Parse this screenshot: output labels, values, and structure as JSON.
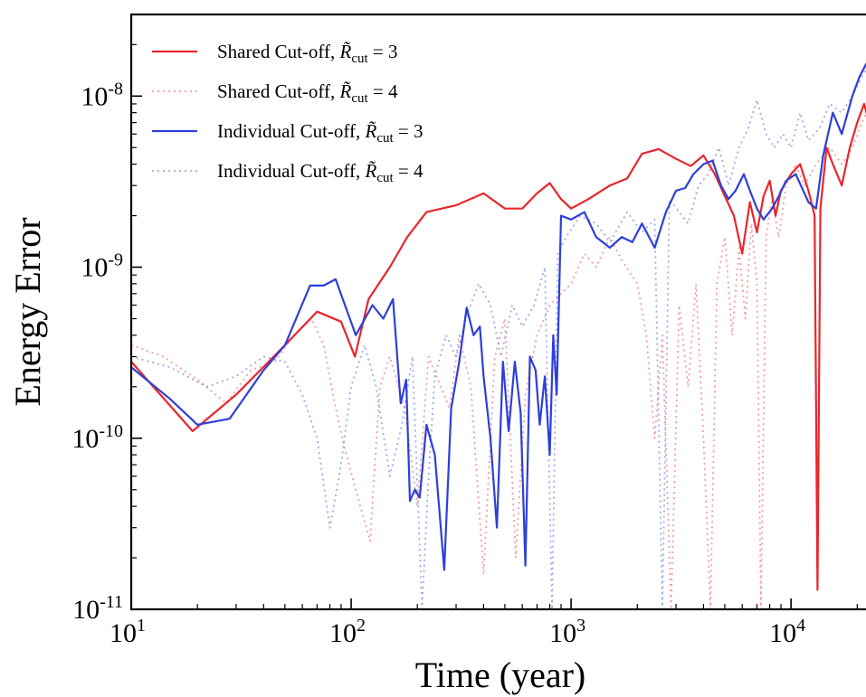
{
  "chart_data": {
    "type": "line",
    "title": "",
    "xlabel": "Time (year)",
    "ylabel": "Energy Error",
    "xscale": "log",
    "yscale": "log",
    "xlim": [
      10,
      25000
    ],
    "ylim": [
      1e-11,
      3e-08
    ],
    "grid": false,
    "legend_position": "top-left",
    "x_ticks": [
      {
        "value": 10,
        "base": "10",
        "exp": "1"
      },
      {
        "value": 100,
        "base": "10",
        "exp": "2"
      },
      {
        "value": 1000,
        "base": "10",
        "exp": "3"
      },
      {
        "value": 10000,
        "base": "10",
        "exp": "4"
      }
    ],
    "y_ticks": [
      {
        "value": 1e-08,
        "base": "10",
        "exp": "-8"
      },
      {
        "value": 1e-09,
        "base": "10",
        "exp": "-9"
      },
      {
        "value": 1e-10,
        "base": "10",
        "exp": "-10"
      },
      {
        "value": 1e-11,
        "base": "10",
        "exp": "-11"
      }
    ],
    "series": [
      {
        "name": "Shared Cut-off, R̃cut = 3",
        "legend_prefix": "Shared Cut-off, ",
        "legend_sym": "R̃",
        "legend_sub": "cut",
        "legend_eq": " = 3",
        "color": "#e8262c",
        "dashed": false,
        "opacity": 1.0,
        "points": [
          [
            10,
            2.8e-10
          ],
          [
            19,
            1.1e-10
          ],
          [
            30,
            1.8e-10
          ],
          [
            50,
            3.5e-10
          ],
          [
            70,
            5.5e-10
          ],
          [
            90,
            4.8e-10
          ],
          [
            104,
            3e-10
          ],
          [
            120,
            6.5e-10
          ],
          [
            150,
            1e-09
          ],
          [
            180,
            1.5e-09
          ],
          [
            220,
            2.1e-09
          ],
          [
            300,
            2.3e-09
          ],
          [
            400,
            2.7e-09
          ],
          [
            500,
            2.2e-09
          ],
          [
            600,
            2.2e-09
          ],
          [
            700,
            2.7e-09
          ],
          [
            800,
            3.1e-09
          ],
          [
            900,
            2.5e-09
          ],
          [
            1000,
            2.2e-09
          ],
          [
            1200,
            2.5e-09
          ],
          [
            1500,
            3e-09
          ],
          [
            1800,
            3.3e-09
          ],
          [
            2100,
            4.6e-09
          ],
          [
            2500,
            4.9e-09
          ],
          [
            3000,
            4.3e-09
          ],
          [
            3500,
            3.9e-09
          ],
          [
            4000,
            4.5e-09
          ],
          [
            4500,
            3.5e-09
          ],
          [
            5000,
            2.6e-09
          ],
          [
            5500,
            2e-09
          ],
          [
            6000,
            1.2e-09
          ],
          [
            6500,
            2.4e-09
          ],
          [
            7000,
            1.6e-09
          ],
          [
            7500,
            2.6e-09
          ],
          [
            8000,
            3.2e-09
          ],
          [
            8500,
            2e-09
          ],
          [
            9000,
            2.8e-09
          ],
          [
            10000,
            3.5e-09
          ],
          [
            11000,
            4e-09
          ],
          [
            12000,
            2.8e-09
          ],
          [
            12800,
            2e-09
          ],
          [
            13200,
            1.3e-11
          ],
          [
            13600,
            2.2e-09
          ],
          [
            14500,
            5e-09
          ],
          [
            15500,
            4e-09
          ],
          [
            17000,
            3e-09
          ],
          [
            18500,
            5e-09
          ],
          [
            20000,
            7e-09
          ],
          [
            21500,
            9e-09
          ],
          [
            23000,
            6.5e-09
          ],
          [
            25000,
            1.05e-08
          ]
        ]
      },
      {
        "name": "Shared Cut-off, R̃cut = 4",
        "legend_prefix": "Shared Cut-off, ",
        "legend_sym": "R̃",
        "legend_sub": "cut",
        "legend_eq": " = 4",
        "color": "#e8262c",
        "dashed": true,
        "opacity": 0.45,
        "points": [
          [
            10,
            3.5e-10
          ],
          [
            14,
            3e-10
          ],
          [
            20,
            2.2e-10
          ],
          [
            27,
            1.6e-10
          ],
          [
            35,
            2.5e-10
          ],
          [
            45,
            2.8e-10
          ],
          [
            55,
            4e-10
          ],
          [
            66,
            5e-10
          ],
          [
            75,
            3.5e-10
          ],
          [
            85,
            1.5e-10
          ],
          [
            95,
            8e-11
          ],
          [
            110,
            4e-11
          ],
          [
            122,
            2.5e-11
          ],
          [
            135,
            2e-10
          ],
          [
            150,
            3e-10
          ],
          [
            175,
            1.5e-10
          ],
          [
            200,
            4e-11
          ],
          [
            225,
            3e-10
          ],
          [
            255,
            2e-10
          ],
          [
            280,
            1.5e-10
          ],
          [
            310,
            4e-10
          ],
          [
            350,
            2e-10
          ],
          [
            400,
            1.6e-11
          ],
          [
            450,
            3e-10
          ],
          [
            500,
            5e-10
          ],
          [
            560,
            2e-11
          ],
          [
            620,
            1.8e-10
          ],
          [
            700,
            4e-10
          ],
          [
            800,
            6e-10
          ],
          [
            900,
            7e-10
          ],
          [
            1000,
            8e-10
          ],
          [
            1150,
            1.2e-09
          ],
          [
            1300,
            1e-09
          ],
          [
            1500,
            1.5e-09
          ],
          [
            1700,
            1.1e-09
          ],
          [
            2000,
            8e-10
          ],
          [
            2200,
            4e-10
          ],
          [
            2400,
            1e-10
          ],
          [
            2600,
            4e-10
          ],
          [
            2850,
            1e-11
          ],
          [
            3100,
            6e-10
          ],
          [
            3400,
            2e-10
          ],
          [
            3700,
            8e-10
          ],
          [
            4000,
            1e-10
          ],
          [
            4300,
            1e-11
          ],
          [
            4600,
            8e-10
          ],
          [
            5000,
            1.5e-09
          ],
          [
            5400,
            4e-10
          ],
          [
            5800,
            1.3e-09
          ],
          [
            6200,
            5e-10
          ],
          [
            6600,
            1.8e-09
          ],
          [
            7000,
            8e-10
          ],
          [
            7300,
            1e-11
          ],
          [
            7700,
            1.5e-09
          ],
          [
            8200,
            2.5e-09
          ],
          [
            8800,
            1.5e-09
          ],
          [
            9500,
            3e-09
          ],
          [
            10500,
            4e-09
          ],
          [
            11500,
            3e-09
          ],
          [
            13000,
            4e-09
          ],
          [
            15000,
            5e-09
          ],
          [
            17000,
            4e-09
          ],
          [
            19000,
            5e-09
          ],
          [
            21000,
            7e-09
          ],
          [
            23000,
            9e-09
          ],
          [
            25000,
            8e-09
          ]
        ]
      },
      {
        "name": "Individual Cut-off, R̃cut = 3",
        "legend_prefix": "Individual Cut-off, ",
        "legend_sym": "R̃",
        "legend_sub": "cut",
        "legend_eq": " = 3",
        "color": "#2e3fd9",
        "dashed": false,
        "opacity": 1.0,
        "points": [
          [
            10,
            2.6e-10
          ],
          [
            15,
            1.7e-10
          ],
          [
            20,
            1.2e-10
          ],
          [
            28,
            1.3e-10
          ],
          [
            40,
            2.5e-10
          ],
          [
            50,
            3.5e-10
          ],
          [
            65,
            7.8e-10
          ],
          [
            75,
            7.8e-10
          ],
          [
            85,
            8.5e-10
          ],
          [
            105,
            4e-10
          ],
          [
            125,
            6e-10
          ],
          [
            140,
            5e-10
          ],
          [
            155,
            6.5e-10
          ],
          [
            168,
            1.6e-10
          ],
          [
            178,
            2.2e-10
          ],
          [
            185,
            4.3e-11
          ],
          [
            195,
            5e-11
          ],
          [
            205,
            4.5e-11
          ],
          [
            220,
            1.2e-10
          ],
          [
            240,
            8e-11
          ],
          [
            265,
            1.7e-11
          ],
          [
            285,
            1.5e-10
          ],
          [
            310,
            2.8e-10
          ],
          [
            335,
            5.8e-10
          ],
          [
            360,
            4e-10
          ],
          [
            385,
            4.5e-10
          ],
          [
            400,
            2.3e-10
          ],
          [
            430,
            1e-10
          ],
          [
            460,
            3e-11
          ],
          [
            490,
            2.8e-10
          ],
          [
            520,
            1.1e-10
          ],
          [
            555,
            2.8e-10
          ],
          [
            590,
            1.4e-10
          ],
          [
            620,
            1.8e-11
          ],
          [
            650,
            3e-10
          ],
          [
            690,
            2.5e-10
          ],
          [
            720,
            1.2e-10
          ],
          [
            760,
            2.3e-10
          ],
          [
            800,
            8e-11
          ],
          [
            830,
            4e-10
          ],
          [
            860,
            1.8e-10
          ],
          [
            900,
            2e-09
          ],
          [
            1000,
            1.9e-09
          ],
          [
            1150,
            2.1e-09
          ],
          [
            1300,
            1.5e-09
          ],
          [
            1500,
            1.3e-09
          ],
          [
            1700,
            1.5e-09
          ],
          [
            1900,
            1.4e-09
          ],
          [
            2100,
            1.8e-09
          ],
          [
            2400,
            1.3e-09
          ],
          [
            2700,
            2.1e-09
          ],
          [
            3000,
            2.8e-09
          ],
          [
            3300,
            2.9e-09
          ],
          [
            3600,
            3.5e-09
          ],
          [
            4000,
            4e-09
          ],
          [
            4400,
            4.2e-09
          ],
          [
            4800,
            3e-09
          ],
          [
            5200,
            2.5e-09
          ],
          [
            5600,
            2.8e-09
          ],
          [
            6100,
            3.5e-09
          ],
          [
            6500,
            2.8e-09
          ],
          [
            7000,
            2.2e-09
          ],
          [
            7500,
            1.9e-09
          ],
          [
            8200,
            2.2e-09
          ],
          [
            8800,
            2.6e-09
          ],
          [
            9500,
            3.2e-09
          ],
          [
            10500,
            3.5e-09
          ],
          [
            12000,
            2.4e-09
          ],
          [
            13000,
            2.2e-09
          ],
          [
            14000,
            4.5e-09
          ],
          [
            15500,
            8e-09
          ],
          [
            17000,
            6e-09
          ],
          [
            19000,
            1e-08
          ],
          [
            20500,
            1.3e-08
          ],
          [
            22000,
            1.55e-08
          ],
          [
            24000,
            1.5e-08
          ],
          [
            25000,
            1.55e-08
          ]
        ]
      },
      {
        "name": "Individual Cut-off, R̃cut = 4",
        "legend_prefix": "Individual Cut-off, ",
        "legend_sym": "R̃",
        "legend_sub": "cut",
        "legend_eq": " = 4",
        "color": "#2e3fd9",
        "dashed": true,
        "opacity": 0.45,
        "points": [
          [
            10,
            3e-10
          ],
          [
            15,
            2.6e-10
          ],
          [
            22,
            2e-10
          ],
          [
            30,
            2.3e-10
          ],
          [
            40,
            3e-10
          ],
          [
            50,
            2.8e-10
          ],
          [
            60,
            1.8e-10
          ],
          [
            70,
            1e-10
          ],
          [
            80,
            3e-11
          ],
          [
            90,
            7e-11
          ],
          [
            100,
            2e-10
          ],
          [
            115,
            3.5e-10
          ],
          [
            130,
            2e-10
          ],
          [
            150,
            6e-11
          ],
          [
            170,
            1.2e-10
          ],
          [
            190,
            3e-10
          ],
          [
            210,
            1e-11
          ],
          [
            225,
            6e-11
          ],
          [
            240,
            2.3e-10
          ],
          [
            270,
            4e-10
          ],
          [
            300,
            3e-10
          ],
          [
            340,
            5.5e-10
          ],
          [
            380,
            8e-10
          ],
          [
            430,
            6e-10
          ],
          [
            480,
            3e-10
          ],
          [
            540,
            6e-10
          ],
          [
            600,
            4.5e-10
          ],
          [
            680,
            6e-10
          ],
          [
            760,
            1e-09
          ],
          [
            820,
            1e-11
          ],
          [
            870,
            1.2e-09
          ],
          [
            950,
            1.5e-09
          ],
          [
            1100,
            2e-09
          ],
          [
            1300,
            1.8e-09
          ],
          [
            1500,
            1.4e-09
          ],
          [
            1800,
            2.1e-09
          ],
          [
            2100,
            1.6e-09
          ],
          [
            2400,
            1.9e-09
          ],
          [
            2600,
            1e-11
          ],
          [
            2800,
            2.5e-09
          ],
          [
            3100,
            2.1e-09
          ],
          [
            3400,
            1.8e-09
          ],
          [
            3800,
            3e-09
          ],
          [
            4200,
            3.5e-09
          ],
          [
            4700,
            5e-09
          ],
          [
            5200,
            3e-09
          ],
          [
            5800,
            5e-09
          ],
          [
            6400,
            6.5e-09
          ],
          [
            7000,
            9.5e-09
          ],
          [
            7700,
            6e-09
          ],
          [
            8400,
            5e-09
          ],
          [
            9200,
            6e-09
          ],
          [
            10000,
            5e-09
          ],
          [
            11000,
            8e-09
          ],
          [
            12000,
            5.5e-09
          ],
          [
            13500,
            6.5e-09
          ],
          [
            15000,
            9e-09
          ],
          [
            17000,
            8e-09
          ],
          [
            19000,
            1e-08
          ],
          [
            21000,
            1.3e-08
          ],
          [
            23000,
            1.6e-08
          ],
          [
            25000,
            1.7e-08
          ]
        ]
      }
    ]
  }
}
